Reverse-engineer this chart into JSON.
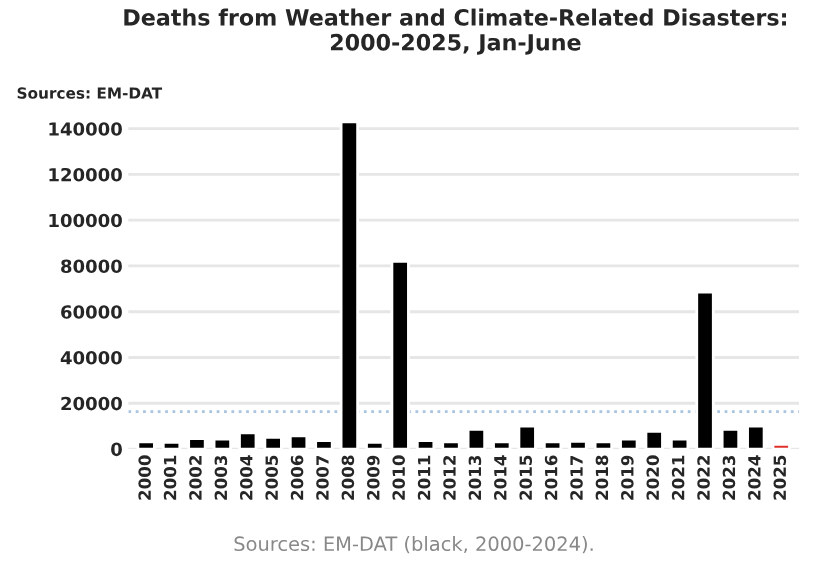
{
  "chart_data": {
    "type": "bar",
    "title": "Deaths from Weather and Climate-Related Disasters:\n2000-2025, Jan-June",
    "subtitle": "Sources: EM-DAT",
    "annotations": [
      "Sources: EM-DAT (black, 2000-2024)."
    ],
    "categories": [
      "2000",
      "2001",
      "2002",
      "2003",
      "2004",
      "2005",
      "2006",
      "2007",
      "2008",
      "2009",
      "2010",
      "2011",
      "2012",
      "2013",
      "2014",
      "2015",
      "2016",
      "2017",
      "2018",
      "2019",
      "2020",
      "2021",
      "2022",
      "2023",
      "2024",
      "2025"
    ],
    "values": [
      3100,
      2900,
      4600,
      4300,
      7100,
      5100,
      5700,
      3700,
      143000,
      2900,
      82000,
      3700,
      3100,
      8600,
      3100,
      10000,
      3100,
      3400,
      3100,
      4300,
      7700,
      4300,
      68600,
      8600,
      10000,
      2000
    ],
    "colors": [
      "#000000",
      "#000000",
      "#000000",
      "#000000",
      "#000000",
      "#000000",
      "#000000",
      "#000000",
      "#000000",
      "#000000",
      "#000000",
      "#000000",
      "#000000",
      "#000000",
      "#000000",
      "#000000",
      "#000000",
      "#000000",
      "#000000",
      "#000000",
      "#000000",
      "#000000",
      "#000000",
      "#000000",
      "#000000",
      "#e0302a"
    ],
    "ylim": [
      0,
      145000
    ],
    "yticks": [
      0,
      20000,
      40000,
      60000,
      80000,
      100000,
      120000,
      140000
    ],
    "ref_lines": [
      {
        "axis": "y",
        "value": 16300,
        "color": "#a9c4e0",
        "line_style": "dotted"
      }
    ],
    "grid": "y"
  }
}
